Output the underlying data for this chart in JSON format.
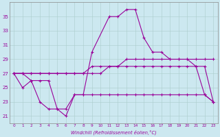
{
  "xlabel": "Windchill (Refroidissement éolien,°C)",
  "x_hours": [
    0,
    1,
    2,
    3,
    4,
    5,
    6,
    7,
    8,
    9,
    10,
    11,
    12,
    13,
    14,
    15,
    16,
    17,
    18,
    19,
    20,
    21,
    22,
    23
  ],
  "line1_x": [
    0,
    1,
    2,
    3,
    4,
    5,
    6,
    7,
    8,
    9,
    11,
    12,
    13,
    14,
    15,
    16,
    17,
    18,
    19,
    20,
    21,
    22,
    23
  ],
  "line1_y": [
    27,
    27,
    26,
    26,
    26,
    22,
    21,
    24,
    24,
    30,
    35,
    35,
    36,
    36,
    32,
    30,
    30,
    29,
    29,
    29,
    28,
    24,
    23
  ],
  "line2_x": [
    0,
    1,
    2,
    3,
    4,
    5,
    6,
    7,
    8,
    9,
    10,
    11,
    12,
    13,
    14,
    15,
    16,
    17,
    18,
    19,
    20,
    21,
    22,
    23
  ],
  "line2_y": [
    27,
    27,
    27,
    27,
    27,
    27,
    27,
    27,
    27,
    28,
    28,
    28,
    28,
    29,
    29,
    29,
    29,
    29,
    29,
    29,
    29,
    29,
    29,
    29
  ],
  "line3_x": [
    0,
    1,
    2,
    3,
    4,
    5,
    6,
    7,
    8,
    9,
    10,
    11,
    12,
    13,
    14,
    15,
    16,
    17,
    18,
    19,
    20,
    21,
    22,
    23
  ],
  "line3_y": [
    27,
    27,
    27,
    27,
    27,
    27,
    27,
    27,
    27,
    27,
    27,
    28,
    28,
    28,
    28,
    28,
    28,
    28,
    28,
    28,
    28,
    28,
    28,
    23
  ],
  "line4_x": [
    0,
    1,
    2,
    3,
    4,
    5,
    6,
    7,
    8,
    9,
    10,
    11,
    12,
    13,
    14,
    15,
    16,
    17,
    18,
    19,
    20,
    21,
    22,
    23
  ],
  "line4_y": [
    27,
    25,
    26,
    23,
    22,
    22,
    22,
    24,
    24,
    24,
    24,
    24,
    24,
    24,
    24,
    24,
    24,
    24,
    24,
    24,
    24,
    24,
    24,
    23
  ],
  "line_color": "#990099",
  "bg_color": "#cce8f0",
  "grid_color": "#aacccc",
  "ylim_min": 20,
  "ylim_max": 37,
  "yticks": [
    21,
    23,
    25,
    27,
    29,
    31,
    33,
    35
  ],
  "xlim_min": -0.5,
  "xlim_max": 23.5,
  "lw": 0.8,
  "ms": 3.0
}
